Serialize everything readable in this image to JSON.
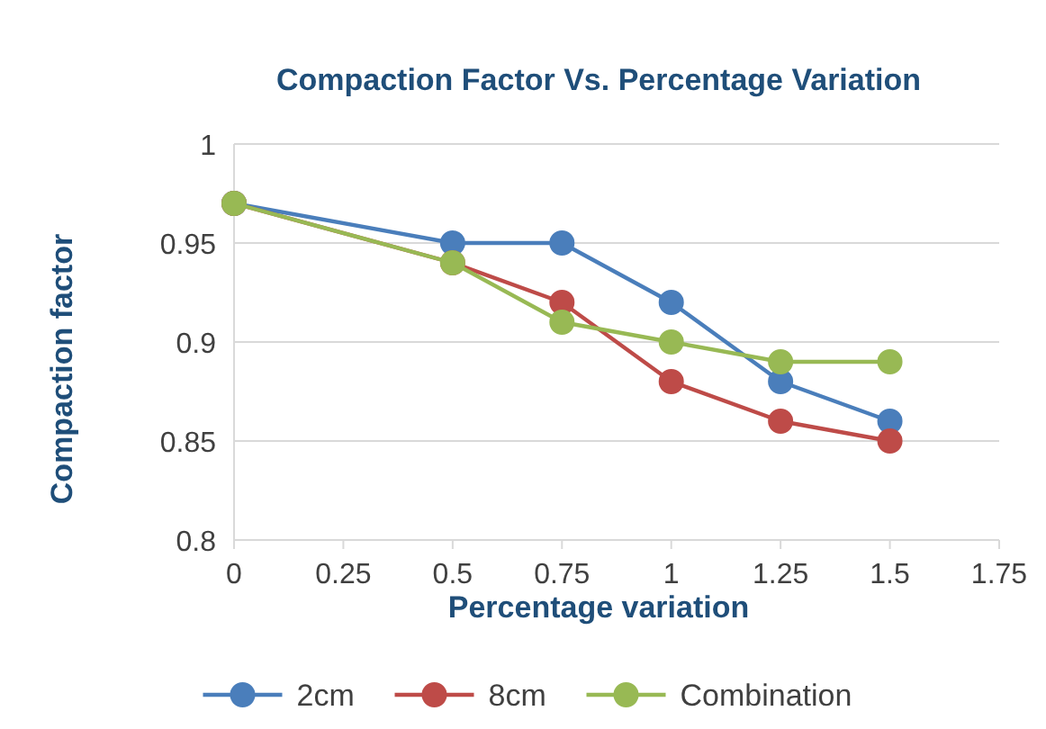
{
  "chart_data": {
    "type": "line",
    "title": "Compaction Factor Vs. Percentage Variation",
    "xlabel": "Percentage variation",
    "ylabel": "Compaction factor",
    "x": [
      0,
      0.5,
      0.75,
      1,
      1.25,
      1.5
    ],
    "series": [
      {
        "name": "2cm",
        "color": "#4a7ebb",
        "values": [
          0.97,
          0.95,
          0.95,
          0.92,
          0.88,
          0.86
        ]
      },
      {
        "name": "8cm",
        "color": "#be4b48",
        "values": [
          0.97,
          0.94,
          0.92,
          0.88,
          0.86,
          0.85
        ]
      },
      {
        "name": "Combination",
        "color": "#98b954",
        "values": [
          0.97,
          0.94,
          0.91,
          0.9,
          0.89,
          0.89
        ]
      }
    ],
    "xlim": [
      0,
      1.75
    ],
    "xticks": [
      0,
      0.25,
      0.5,
      0.75,
      1,
      1.25,
      1.5,
      1.75
    ],
    "ylim": [
      0.8,
      1
    ],
    "yticks": [
      0.8,
      0.85,
      0.9,
      0.95,
      1
    ],
    "grid": "y",
    "legend": "bottom",
    "marker": "circle",
    "line_style": "solid"
  }
}
